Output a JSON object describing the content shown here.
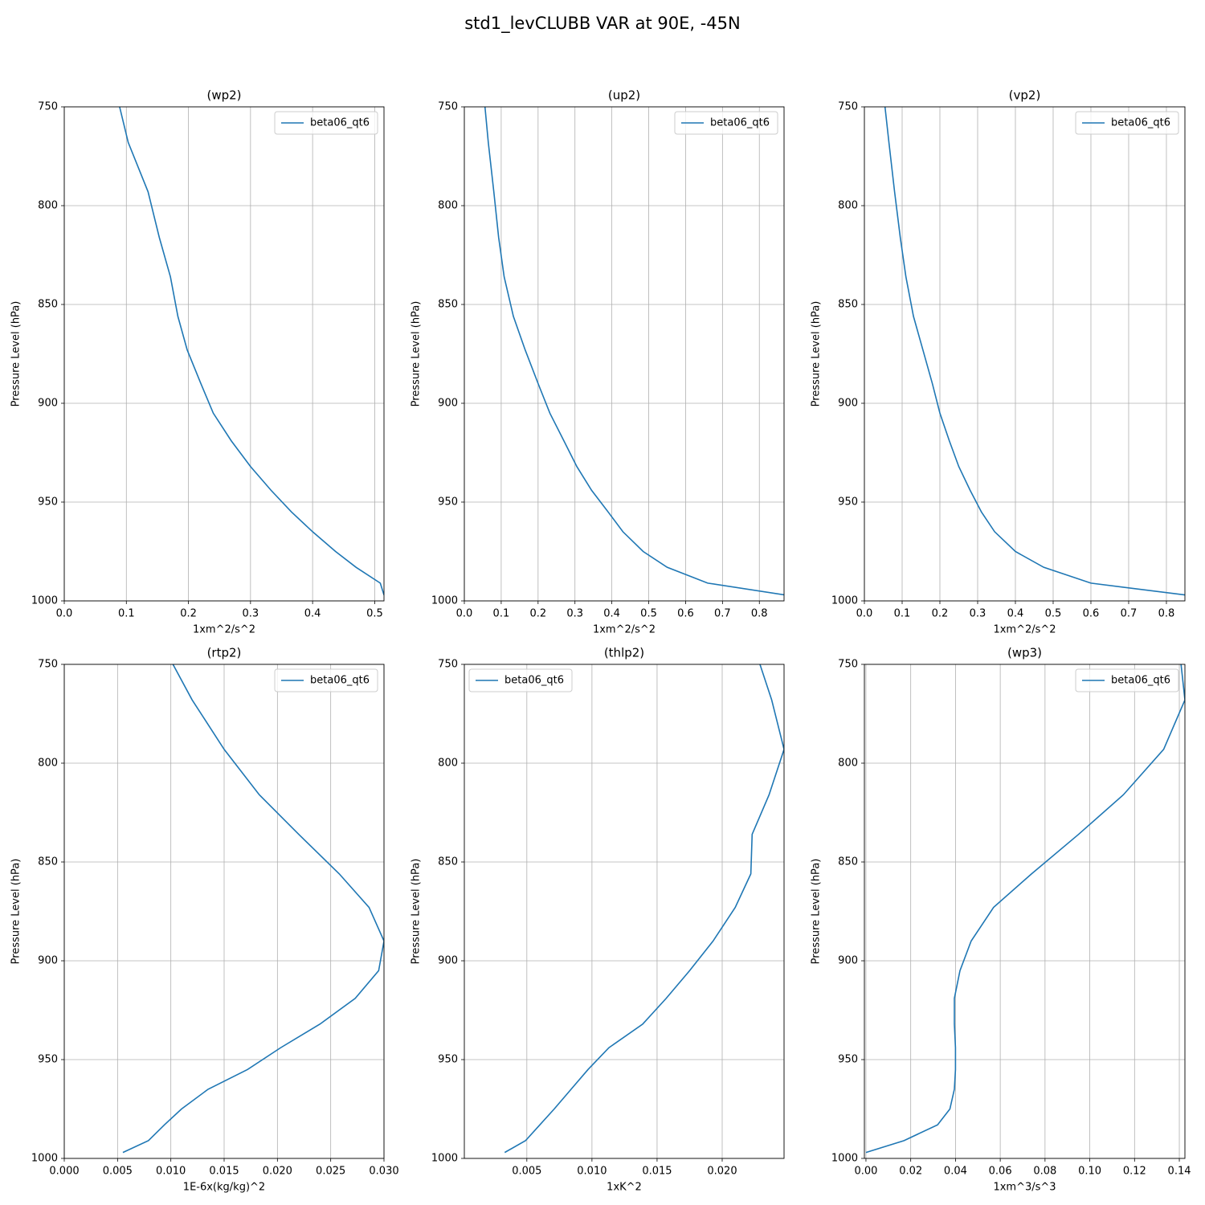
{
  "title": "std1_levCLUBB VAR at 90E, -45N",
  "chart_data": [
    {
      "type": "line",
      "title": "(wp2)",
      "xlabel": "1xm^2/s^2",
      "ylabel": "Pressure Level (hPa)",
      "y": [
        742,
        768,
        793,
        816,
        836,
        856,
        873,
        890,
        905,
        919,
        932,
        944,
        955,
        965,
        975,
        983,
        991,
        997
      ],
      "series": [
        {
          "name": "beta06_qt6",
          "color": "#1f77b4",
          "values": [
            0.083,
            0.103,
            0.135,
            0.153,
            0.171,
            0.183,
            0.198,
            0.22,
            0.24,
            0.269,
            0.3,
            0.333,
            0.366,
            0.4,
            0.437,
            0.47,
            0.509,
            0.515
          ]
        }
      ],
      "xlim": [
        0,
        0.515
      ],
      "xticks": [
        {
          "value": 0,
          "label": "0.0"
        },
        0.1,
        0.2,
        0.3,
        0.4,
        0.5
      ],
      "ylim": [
        1000,
        750
      ],
      "yticks": [
        750,
        800,
        850,
        900,
        950,
        1000
      ],
      "grid": true,
      "legend": "upper right"
    },
    {
      "type": "line",
      "title": "(up2)",
      "xlabel": "1xm^2/s^2",
      "ylabel": "Pressure Level (hPa)",
      "y": [
        742,
        768,
        793,
        816,
        836,
        856,
        873,
        890,
        905,
        919,
        932,
        944,
        955,
        965,
        975,
        983,
        991,
        997
      ],
      "series": [
        {
          "name": "beta06_qt6",
          "color": "#1f77b4",
          "values": [
            0.052,
            0.065,
            0.08,
            0.093,
            0.108,
            0.133,
            0.165,
            0.2,
            0.232,
            0.27,
            0.305,
            0.345,
            0.39,
            0.43,
            0.485,
            0.55,
            0.66,
            0.87
          ]
        }
      ],
      "xlim": [
        0,
        0.867
      ],
      "xticks": [
        {
          "value": 0,
          "label": "0.0"
        },
        0.1,
        0.2,
        0.3,
        0.4,
        0.5,
        0.6,
        0.7,
        0.8
      ],
      "ylim": [
        1000,
        750
      ],
      "yticks": [
        750,
        800,
        850,
        900,
        950,
        1000
      ],
      "grid": true,
      "legend": "upper right"
    },
    {
      "type": "line",
      "title": "(vp2)",
      "xlabel": "1xm^2/s^2",
      "ylabel": "Pressure Level (hPa)",
      "y": [
        742,
        768,
        793,
        816,
        836,
        856,
        873,
        890,
        905,
        919,
        932,
        944,
        955,
        965,
        975,
        983,
        991,
        997
      ],
      "series": [
        {
          "name": "beta06_qt6",
          "color": "#1f77b4",
          "values": [
            0.05,
            0.065,
            0.08,
            0.095,
            0.11,
            0.13,
            0.155,
            0.18,
            0.2,
            0.225,
            0.25,
            0.28,
            0.31,
            0.345,
            0.4,
            0.475,
            0.6,
            0.85
          ]
        }
      ],
      "xlim": [
        0,
        0.849
      ],
      "xticks": [
        {
          "value": 0,
          "label": "0.0"
        },
        0.1,
        0.2,
        0.3,
        0.4,
        0.5,
        0.6,
        0.7,
        0.8
      ],
      "ylim": [
        1000,
        750
      ],
      "yticks": [
        750,
        800,
        850,
        900,
        950,
        1000
      ],
      "grid": true,
      "legend": "upper right"
    },
    {
      "type": "line",
      "title": "(rtp2)",
      "xlabel": "1E-6x(kg/kg)^2",
      "ylabel": "Pressure Level (hPa)",
      "y": [
        742,
        768,
        793,
        816,
        836,
        856,
        873,
        890,
        905,
        919,
        932,
        944,
        955,
        965,
        975,
        983,
        991,
        997
      ],
      "series": [
        {
          "name": "beta06_qt6",
          "color": "#1f77b4",
          "values": [
            0.0094,
            0.012,
            0.015,
            0.0183,
            0.022,
            0.0258,
            0.0286,
            0.03,
            0.0295,
            0.0273,
            0.024,
            0.0203,
            0.0172,
            0.0135,
            0.011,
            0.0094,
            0.0079,
            0.0055
          ]
        }
      ],
      "xlim": [
        0,
        0.03
      ],
      "xticks": [
        {
          "value": 0,
          "label": "0.000"
        },
        0.005,
        {
          "value": 0.01,
          "label": "0.010"
        },
        0.015,
        {
          "value": 0.02,
          "label": "0.020"
        },
        0.025,
        {
          "value": 0.03,
          "label": "0.030"
        }
      ],
      "ylim": [
        1000,
        750
      ],
      "yticks": [
        750,
        800,
        850,
        900,
        950,
        1000
      ],
      "grid": true,
      "legend": "upper right"
    },
    {
      "type": "line",
      "title": "(thlp2)",
      "xlabel": "1xK^2",
      "ylabel": "Pressure Level (hPa)",
      "y": [
        742,
        768,
        793,
        816,
        836,
        856,
        873,
        890,
        905,
        919,
        932,
        944,
        955,
        965,
        975,
        983,
        991,
        997
      ],
      "series": [
        {
          "name": "beta06_qt6",
          "color": "#1f77b4",
          "values": [
            0.0225,
            0.0238,
            0.02475,
            0.0236,
            0.0223,
            0.0222,
            0.021,
            0.0193,
            0.0175,
            0.0157,
            0.0139,
            0.0113,
            0.0097,
            0.0084,
            0.0071,
            0.006,
            0.0049,
            0.0033
          ]
        }
      ],
      "xlim": [
        0.0002,
        0.02475
      ],
      "xticks": [
        0.005,
        {
          "value": 0.01,
          "label": "0.010"
        },
        0.015,
        {
          "value": 0.02,
          "label": "0.020"
        }
      ],
      "ylim": [
        1000,
        750
      ],
      "yticks": [
        750,
        800,
        850,
        900,
        950,
        1000
      ],
      "grid": true,
      "legend": "upper left"
    },
    {
      "type": "line",
      "title": "(wp3)",
      "xlabel": "1xm^3/s^3",
      "ylabel": "Pressure Level (hPa)",
      "y": [
        742,
        768,
        793,
        816,
        836,
        856,
        873,
        890,
        905,
        919,
        932,
        944,
        955,
        965,
        975,
        983,
        991,
        997
      ],
      "series": [
        {
          "name": "beta06_qt6",
          "color": "#1f77b4",
          "values": [
            0.14,
            0.1425,
            0.133,
            0.115,
            0.095,
            0.074,
            0.057,
            0.047,
            0.042,
            0.0395,
            0.0395,
            0.04,
            0.04,
            0.0395,
            0.0375,
            0.032,
            0.017,
            0
          ]
        }
      ],
      "xlim": [
        -0.0007,
        0.1425
      ],
      "xticks": [
        {
          "value": 0,
          "label": "0.00"
        },
        0.02,
        0.04,
        0.06,
        0.08,
        {
          "value": 0.1,
          "label": "0.10"
        },
        0.12,
        0.14
      ],
      "ylim": [
        1000,
        750
      ],
      "yticks": [
        750,
        800,
        850,
        900,
        950,
        1000
      ],
      "grid": true,
      "legend": "upper right"
    }
  ]
}
